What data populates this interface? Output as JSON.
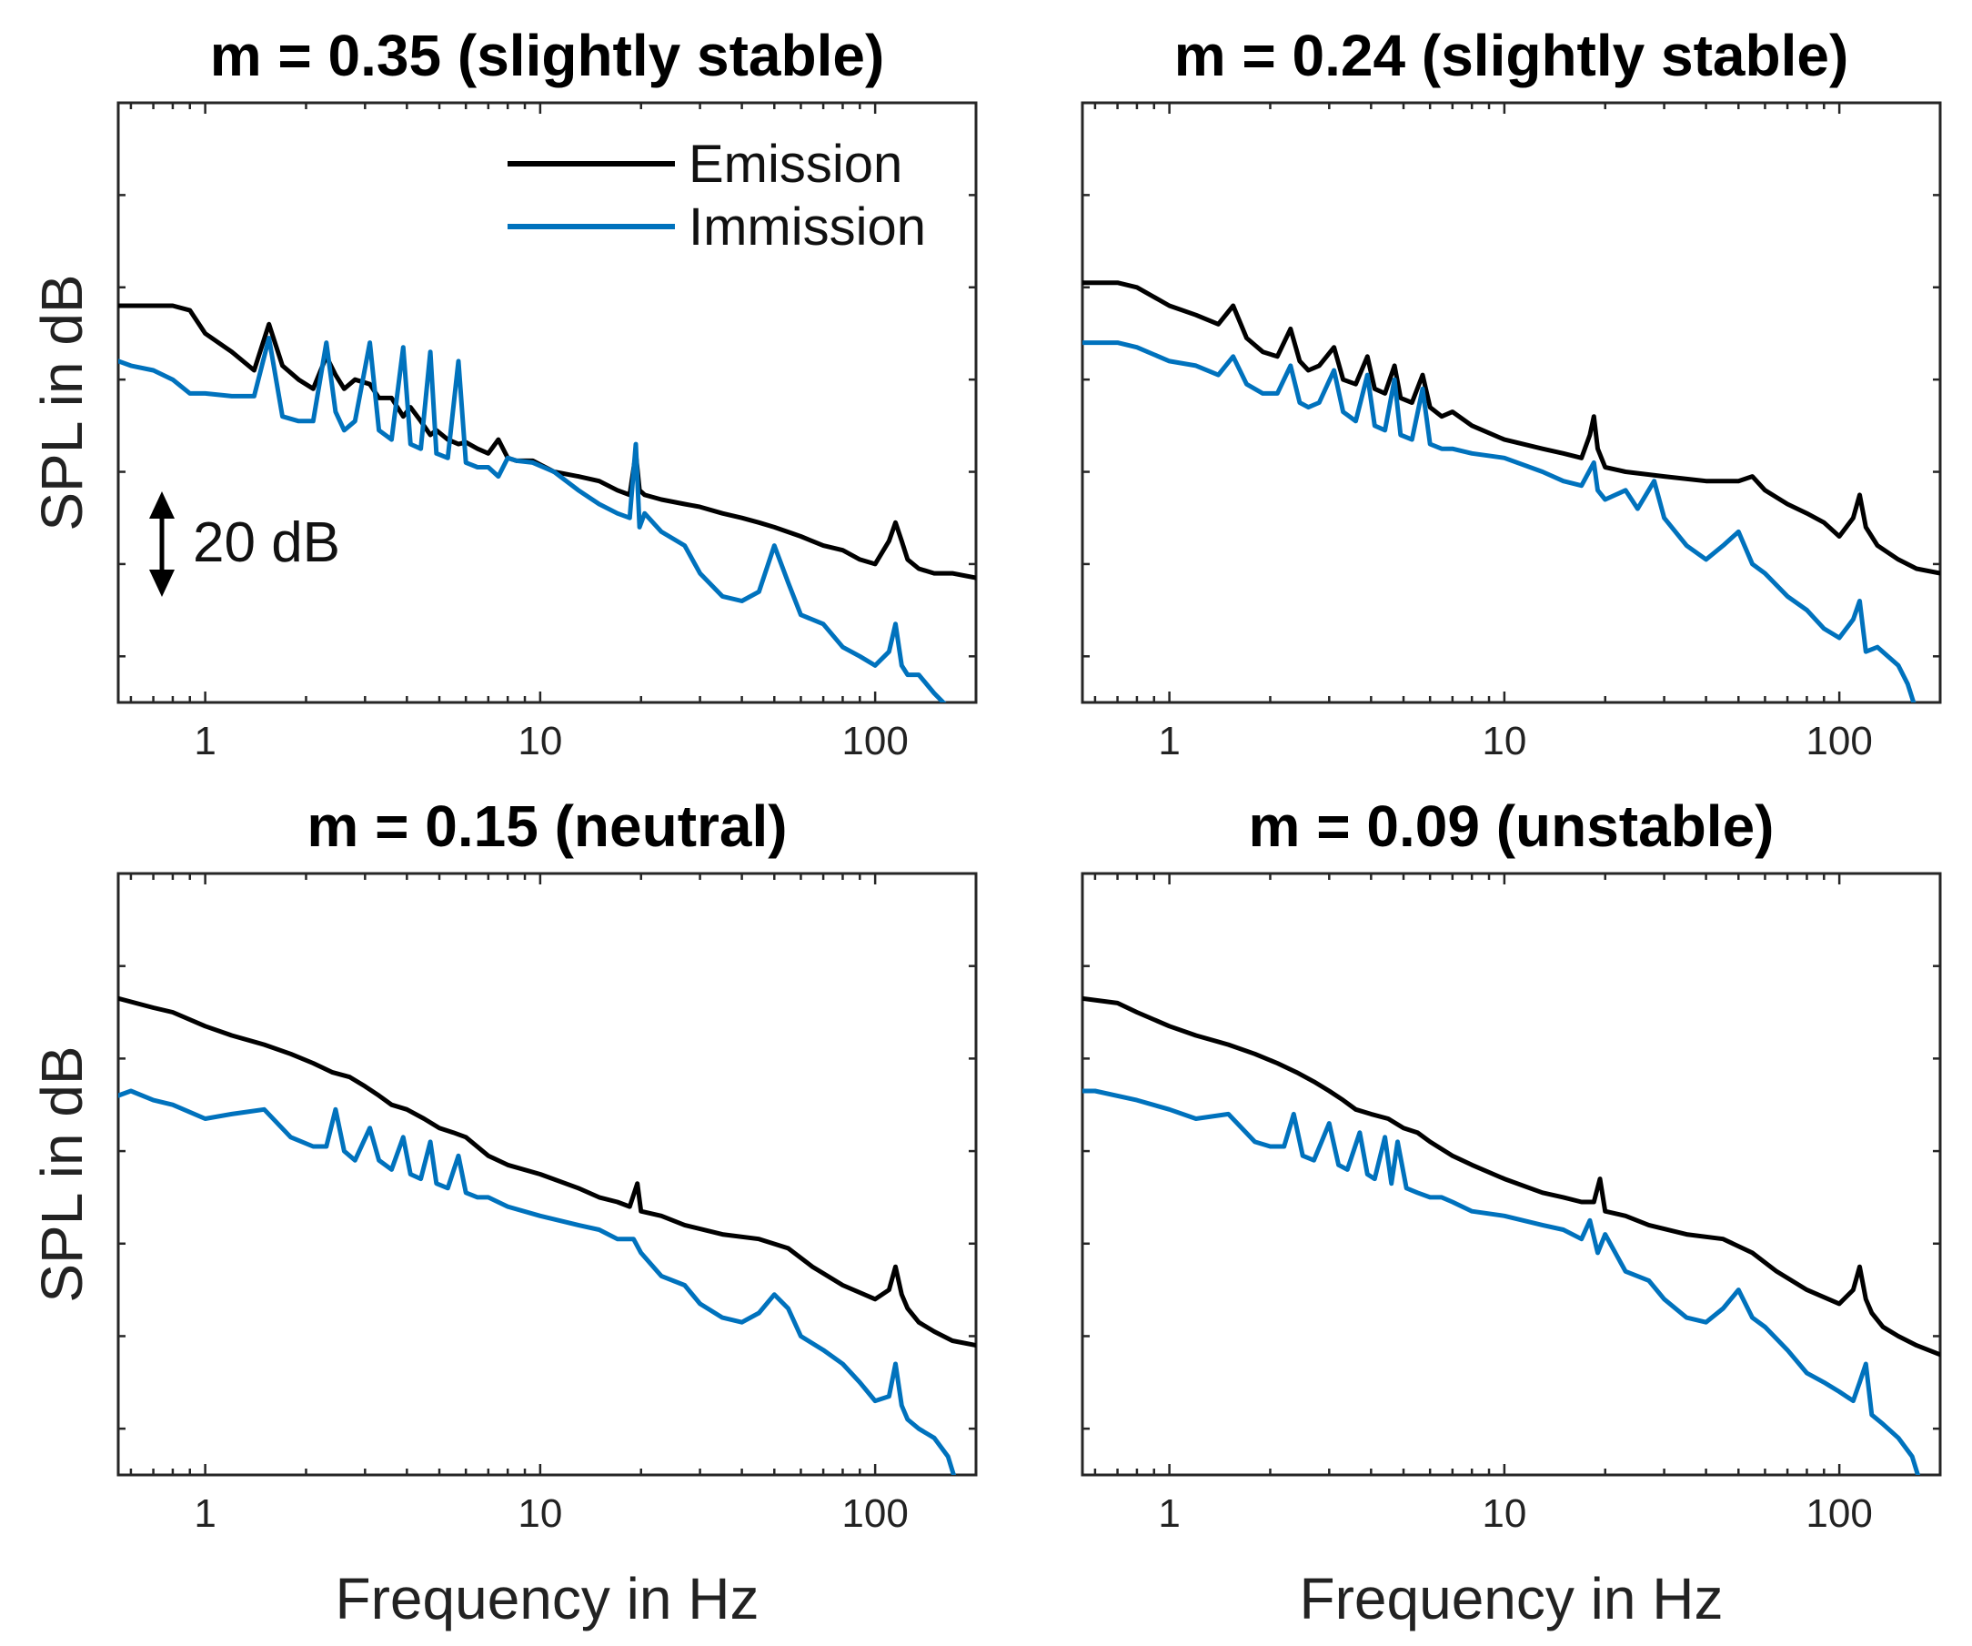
{
  "chart_data": [
    {
      "type": "line",
      "title": "m = 0.35 (slightly stable)",
      "xlabel": "",
      "ylabel": "SPL in dB",
      "xscale": "log",
      "xlim": [
        0.55,
        200
      ],
      "ylim": [
        -65,
        0
      ],
      "xticks": [
        1,
        10,
        100
      ],
      "xtick_labels": [
        "1",
        "10",
        "100"
      ],
      "legend": {
        "position": "top-right",
        "entries": [
          "Emission",
          "Immission"
        ]
      },
      "annotation": "20 dB",
      "series": [
        {
          "name": "Emission",
          "color": "#000000",
          "x": [
            0.55,
            0.6,
            0.7,
            0.8,
            0.9,
            1.0,
            1.2,
            1.4,
            1.55,
            1.7,
            1.9,
            2.1,
            2.3,
            2.45,
            2.6,
            2.8,
            3.1,
            3.3,
            3.6,
            3.9,
            4.1,
            4.4,
            4.7,
            4.9,
            5.3,
            5.7,
            6.0,
            6.5,
            7.0,
            7.5,
            8.0,
            8.5,
            9.5,
            11,
            13,
            15,
            17,
            18.5,
            19.3,
            19.8,
            20.5,
            23,
            27,
            30,
            35,
            40,
            45,
            50,
            60,
            70,
            80,
            90,
            100,
            110,
            115,
            120,
            125,
            135,
            150,
            170,
            200
          ],
          "y": [
            -22,
            -22,
            -22,
            -22,
            -22.5,
            -25,
            -27,
            -29,
            -24,
            -28.5,
            -30,
            -31,
            -27.5,
            -29.5,
            -31,
            -30,
            -30.5,
            -32,
            -32,
            -34,
            -33,
            -34.5,
            -36,
            -35.5,
            -36.5,
            -37,
            -36.8,
            -37.5,
            -38,
            -36.5,
            -38.5,
            -38.8,
            -38.8,
            -40,
            -40.5,
            -41,
            -42,
            -42.5,
            -38,
            -42,
            -42.5,
            -43,
            -43.5,
            -43.8,
            -44.5,
            -45,
            -45.5,
            -46,
            -47,
            -48,
            -48.5,
            -49.5,
            -50,
            -47.5,
            -45.5,
            -47.5,
            -49.5,
            -50.5,
            -51,
            -51,
            -51.5
          ]
        },
        {
          "name": "Immission",
          "color": "#0072BD",
          "x": [
            0.55,
            0.6,
            0.7,
            0.8,
            0.9,
            1.0,
            1.2,
            1.4,
            1.55,
            1.7,
            1.9,
            2.1,
            2.3,
            2.45,
            2.6,
            2.8,
            3.1,
            3.3,
            3.6,
            3.9,
            4.1,
            4.4,
            4.7,
            4.9,
            5.3,
            5.7,
            6.0,
            6.5,
            7.0,
            7.5,
            8.0,
            8.5,
            9.5,
            11,
            13,
            15,
            17,
            18.5,
            19.3,
            19.8,
            20.5,
            23,
            27,
            30,
            35,
            40,
            45,
            50,
            55,
            60,
            70,
            80,
            90,
            100,
            110,
            115,
            120,
            125,
            135,
            150,
            170
          ],
          "y": [
            -28,
            -28.5,
            -29,
            -30,
            -31.5,
            -31.5,
            -31.8,
            -31.8,
            -25.5,
            -34,
            -34.5,
            -34.5,
            -26,
            -33.5,
            -35.5,
            -34.5,
            -26,
            -35.5,
            -36.5,
            -26.5,
            -37,
            -37.5,
            -27,
            -38,
            -38.5,
            -28,
            -39,
            -39.5,
            -39.5,
            -40.5,
            -38.5,
            -38.8,
            -39,
            -40,
            -42,
            -43.5,
            -44.5,
            -45,
            -37,
            -46,
            -44.5,
            -46.5,
            -48,
            -51,
            -53.5,
            -54,
            -53,
            -48,
            -52,
            -55.5,
            -56.5,
            -59,
            -60,
            -61,
            -59.5,
            -56.5,
            -61,
            -62,
            -62,
            -64,
            -66
          ]
        }
      ]
    },
    {
      "type": "line",
      "title": "m = 0.24 (slightly stable)",
      "xlabel": "",
      "ylabel": "",
      "xscale": "log",
      "xlim": [
        0.55,
        200
      ],
      "ylim": [
        -65,
        0
      ],
      "xticks": [
        1,
        10,
        100
      ],
      "xtick_labels": [
        "1",
        "10",
        "100"
      ],
      "series": [
        {
          "name": "Emission",
          "color": "#000000",
          "x": [
            0.55,
            0.7,
            0.8,
            1.0,
            1.2,
            1.4,
            1.55,
            1.7,
            1.9,
            2.1,
            2.3,
            2.45,
            2.6,
            2.8,
            3.1,
            3.3,
            3.6,
            3.9,
            4.1,
            4.4,
            4.7,
            4.9,
            5.3,
            5.7,
            6.0,
            6.5,
            7.0,
            8.0,
            10,
            13,
            15,
            17,
            18,
            18.5,
            19,
            20,
            23,
            30,
            40,
            50,
            55,
            60,
            70,
            80,
            90,
            100,
            110,
            115,
            120,
            130,
            150,
            170,
            200
          ],
          "y": [
            -19.5,
            -19.5,
            -20,
            -22,
            -23,
            -24,
            -22,
            -25.5,
            -27,
            -27.5,
            -24.5,
            -28,
            -29,
            -28.5,
            -26.5,
            -30,
            -30.5,
            -27.5,
            -31,
            -31.5,
            -28.5,
            -32,
            -32.5,
            -29.5,
            -33,
            -34,
            -33.5,
            -35,
            -36.5,
            -37.5,
            -38,
            -38.5,
            -36,
            -34,
            -37.5,
            -39.5,
            -40,
            -40.5,
            -41,
            -41,
            -40.5,
            -42,
            -43.5,
            -44.5,
            -45.5,
            -47,
            -45,
            -42.5,
            -46,
            -48,
            -49.5,
            -50.5,
            -51
          ]
        },
        {
          "name": "Immission",
          "color": "#0072BD",
          "x": [
            0.55,
            0.7,
            0.8,
            1.0,
            1.2,
            1.4,
            1.55,
            1.7,
            1.9,
            2.1,
            2.3,
            2.45,
            2.6,
            2.8,
            3.1,
            3.3,
            3.6,
            3.9,
            4.1,
            4.4,
            4.7,
            4.9,
            5.3,
            5.7,
            6.0,
            6.5,
            7.0,
            8.0,
            10,
            13,
            15,
            17,
            18.5,
            19,
            20,
            23,
            25,
            28,
            30,
            35,
            40,
            45,
            50,
            55,
            60,
            70,
            80,
            90,
            100,
            110,
            115,
            120,
            130,
            150,
            160,
            170
          ],
          "y": [
            -26,
            -26,
            -26.5,
            -28,
            -28.5,
            -29.5,
            -27.5,
            -30.5,
            -31.5,
            -31.5,
            -28.5,
            -32.5,
            -33,
            -32.5,
            -29,
            -33.5,
            -34.5,
            -29.5,
            -35,
            -35.5,
            -30,
            -36,
            -36.5,
            -31,
            -37,
            -37.5,
            -37.5,
            -38,
            -38.5,
            -40,
            -41,
            -41.5,
            -39,
            -42,
            -43,
            -42,
            -44,
            -41,
            -45,
            -48,
            -49.5,
            -48,
            -46.5,
            -50,
            -51,
            -53.5,
            -55,
            -57,
            -58,
            -56,
            -54,
            -59.5,
            -59,
            -61,
            -63,
            -66
          ]
        }
      ]
    },
    {
      "type": "line",
      "title": "m = 0.15 (neutral)",
      "xlabel": "Frequency in Hz",
      "ylabel": "SPL in dB",
      "xscale": "log",
      "xlim": [
        0.55,
        200
      ],
      "ylim": [
        -65,
        0
      ],
      "xticks": [
        1,
        10,
        100
      ],
      "xtick_labels": [
        "1",
        "10",
        "100"
      ],
      "series": [
        {
          "name": "Emission",
          "color": "#000000",
          "x": [
            0.55,
            0.7,
            0.8,
            1.0,
            1.2,
            1.5,
            1.8,
            2.1,
            2.4,
            2.7,
            3.0,
            3.3,
            3.6,
            4.0,
            4.5,
            5.0,
            5.5,
            6.0,
            7.0,
            8.0,
            10,
            13,
            15,
            17,
            18.5,
            19.5,
            20,
            23,
            27,
            35,
            45,
            55,
            65,
            80,
            100,
            110,
            115,
            120,
            125,
            135,
            150,
            170,
            200
          ],
          "y": [
            -13.5,
            -14.5,
            -15,
            -16.5,
            -17.5,
            -18.5,
            -19.5,
            -20.5,
            -21.5,
            -22,
            -23,
            -24,
            -25,
            -25.5,
            -26.5,
            -27.5,
            -28,
            -28.5,
            -30.5,
            -31.5,
            -32.5,
            -34,
            -35,
            -35.5,
            -36,
            -33.5,
            -36.5,
            -37,
            -38,
            -39,
            -39.5,
            -40.5,
            -42.5,
            -44.5,
            -46,
            -45,
            -42.5,
            -45.5,
            -47,
            -48.5,
            -49.5,
            -50.5,
            -51
          ]
        },
        {
          "name": "Immission",
          "color": "#0072BD",
          "x": [
            0.55,
            0.6,
            0.7,
            0.8,
            1.0,
            1.2,
            1.5,
            1.8,
            2.1,
            2.3,
            2.45,
            2.6,
            2.8,
            3.1,
            3.3,
            3.6,
            3.9,
            4.1,
            4.4,
            4.7,
            4.9,
            5.3,
            5.7,
            6.0,
            6.5,
            7.0,
            8.0,
            10,
            13,
            15,
            17,
            19,
            20,
            23,
            27,
            30,
            35,
            40,
            45,
            50,
            55,
            60,
            70,
            80,
            90,
            100,
            110,
            115,
            120,
            125,
            135,
            150,
            165,
            175
          ],
          "y": [
            -24,
            -23.5,
            -24.5,
            -25,
            -26.5,
            -26,
            -25.5,
            -28.5,
            -29.5,
            -29.5,
            -25.5,
            -30,
            -31,
            -27.5,
            -31,
            -32,
            -28.5,
            -32.5,
            -33,
            -29,
            -33.5,
            -34,
            -30.5,
            -34.5,
            -35,
            -35,
            -36,
            -37,
            -38,
            -38.5,
            -39.5,
            -39.5,
            -41,
            -43.5,
            -44.5,
            -46.5,
            -48,
            -48.5,
            -47.5,
            -45.5,
            -47,
            -50,
            -51.5,
            -53,
            -55,
            -57,
            -56.5,
            -53,
            -57.5,
            -59,
            -60,
            -61,
            -63,
            -66
          ]
        }
      ]
    },
    {
      "type": "line",
      "title": "m = 0.09 (unstable)",
      "xlabel": "Frequency in Hz",
      "ylabel": "",
      "xscale": "log",
      "xlim": [
        0.55,
        200
      ],
      "ylim": [
        -65,
        0
      ],
      "xticks": [
        1,
        10,
        100
      ],
      "xtick_labels": [
        "1",
        "10",
        "100"
      ],
      "series": [
        {
          "name": "Emission",
          "color": "#000000",
          "x": [
            0.55,
            0.7,
            0.8,
            1.0,
            1.2,
            1.5,
            1.8,
            2.1,
            2.4,
            2.7,
            3.0,
            3.3,
            3.6,
            4.0,
            4.5,
            5.0,
            5.5,
            6.0,
            7.0,
            8.0,
            10,
            13,
            15,
            17,
            18.5,
            19.3,
            20,
            23,
            27,
            35,
            45,
            55,
            65,
            80,
            100,
            110,
            115,
            120,
            125,
            135,
            150,
            170,
            200
          ],
          "y": [
            -13.5,
            -14,
            -15,
            -16.5,
            -17.5,
            -18.5,
            -19.5,
            -20.5,
            -21.5,
            -22.5,
            -23.5,
            -24.5,
            -25.5,
            -26,
            -26.5,
            -27.5,
            -28,
            -29,
            -30.5,
            -31.5,
            -33,
            -34.5,
            -35,
            -35.5,
            -35.5,
            -33,
            -36.5,
            -37,
            -38,
            -39,
            -39.5,
            -41,
            -43,
            -45,
            -46.5,
            -45,
            -42.5,
            -46,
            -47.5,
            -49,
            -50,
            -51,
            -52
          ]
        },
        {
          "name": "Immission",
          "color": "#0072BD",
          "x": [
            0.55,
            0.6,
            0.8,
            1.0,
            1.2,
            1.5,
            1.8,
            2.0,
            2.2,
            2.35,
            2.5,
            2.7,
            3.0,
            3.2,
            3.4,
            3.7,
            3.9,
            4.1,
            4.4,
            4.6,
            4.8,
            5.1,
            5.5,
            6.0,
            6.5,
            7.0,
            8.0,
            10,
            13,
            15,
            17,
            18,
            19,
            20,
            23,
            27,
            30,
            35,
            40,
            45,
            50,
            55,
            60,
            70,
            80,
            90,
            100,
            110,
            115,
            120,
            125,
            135,
            150,
            165,
            175
          ],
          "y": [
            -23.5,
            -23.5,
            -24.5,
            -25.5,
            -26.5,
            -26,
            -29,
            -29.5,
            -29.5,
            -26,
            -30.5,
            -31,
            -27,
            -31.5,
            -32,
            -28,
            -32.5,
            -33,
            -28.5,
            -33.5,
            -29,
            -34,
            -34.5,
            -35,
            -35,
            -35.5,
            -36.5,
            -37,
            -38,
            -38.5,
            -39.5,
            -37.5,
            -41,
            -39,
            -43,
            -44,
            -46,
            -48,
            -48.5,
            -47,
            -45,
            -48,
            -49,
            -51.5,
            -54,
            -55,
            -56,
            -57,
            -55,
            -53,
            -58.5,
            -59.5,
            -61,
            -63,
            -66
          ]
        }
      ]
    }
  ]
}
